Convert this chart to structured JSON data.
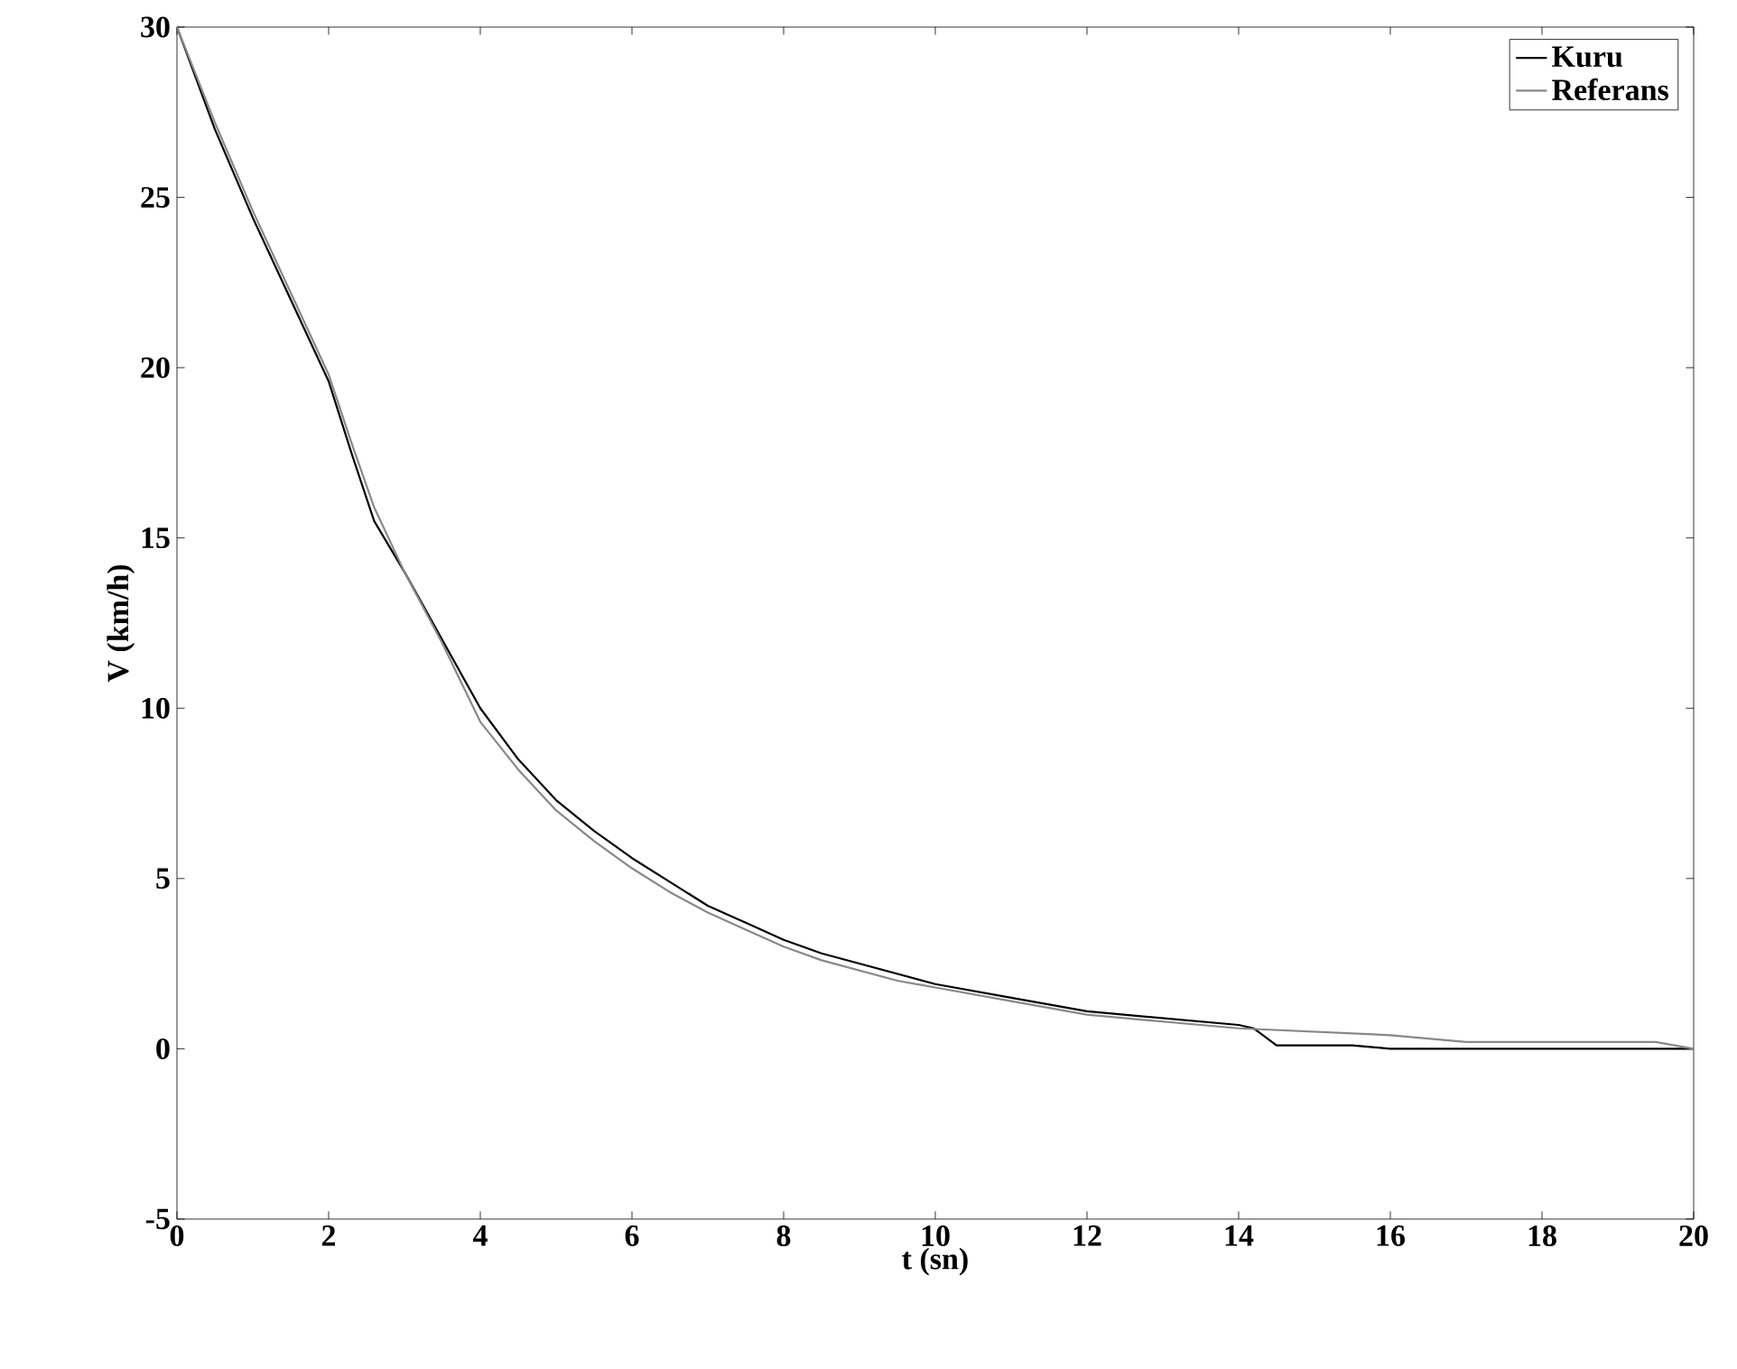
{
  "chart_data": {
    "type": "line",
    "xlabel": "t (sn)",
    "ylabel": "V (km/h)",
    "xlim": [
      0,
      20
    ],
    "ylim": [
      -5,
      30
    ],
    "xticks": [
      0,
      2,
      4,
      6,
      8,
      10,
      12,
      14,
      16,
      18,
      20
    ],
    "yticks": [
      -5,
      0,
      5,
      10,
      15,
      20,
      25,
      30
    ],
    "legend": "top right",
    "grid": false,
    "series": [
      {
        "name": "Kuru",
        "color": "#000000",
        "x": [
          0,
          0.5,
          1,
          1.5,
          2,
          2.3,
          2.6,
          3,
          3.5,
          4,
          4.5,
          5,
          5.5,
          6,
          6.5,
          7,
          7.5,
          8,
          8.5,
          9,
          9.5,
          10,
          11,
          12,
          13,
          14,
          14.2,
          14.5,
          15.5,
          16,
          18,
          20
        ],
        "values": [
          30,
          27,
          24.4,
          22,
          19.6,
          17.5,
          15.5,
          14,
          12,
          10,
          8.5,
          7.3,
          6.4,
          5.6,
          4.9,
          4.2,
          3.7,
          3.2,
          2.8,
          2.5,
          2.2,
          1.9,
          1.5,
          1.1,
          0.9,
          0.7,
          0.6,
          0.1,
          0.1,
          0,
          0,
          0
        ]
      },
      {
        "name": "Referans",
        "color": "#888888",
        "x": [
          0,
          0.5,
          1,
          1.5,
          2,
          2.3,
          2.6,
          3,
          3.5,
          4,
          4.5,
          5,
          5.5,
          6,
          6.5,
          7,
          7.5,
          8,
          8.5,
          9,
          9.5,
          10,
          11,
          12,
          13,
          14,
          15,
          16,
          17,
          18,
          19.5,
          20
        ],
        "values": [
          30,
          27.2,
          24.6,
          22.2,
          19.8,
          17.8,
          15.9,
          14,
          11.9,
          9.6,
          8.2,
          7.0,
          6.1,
          5.3,
          4.6,
          4.0,
          3.5,
          3.0,
          2.6,
          2.3,
          2.0,
          1.8,
          1.4,
          1.0,
          0.8,
          0.6,
          0.5,
          0.4,
          0.2,
          0.2,
          0.2,
          0
        ]
      }
    ]
  }
}
